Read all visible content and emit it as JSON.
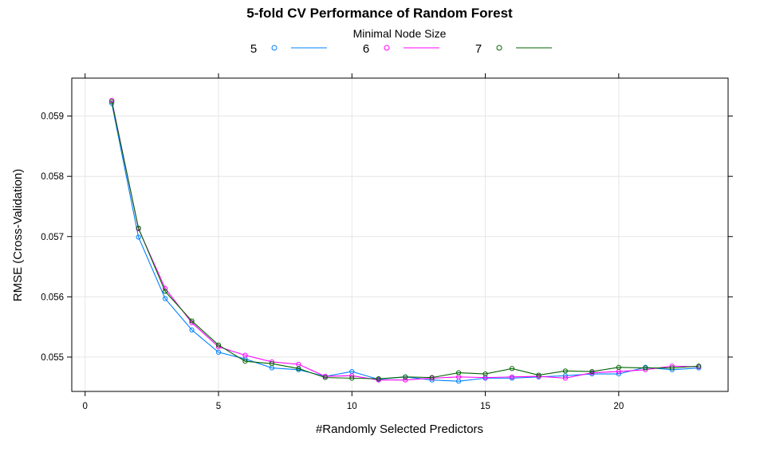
{
  "chart_data": {
    "type": "line",
    "title": "5-fold CV Performance of Random Forest",
    "xlabel": "#Randomly Selected Predictors",
    "ylabel": "RMSE (Cross-Validation)",
    "legend_title": "Minimal Node Size",
    "legend_position": "top",
    "grid": true,
    "xlim": [
      -0.5,
      24.1
    ],
    "ylim": [
      0.05443,
      0.05963
    ],
    "x_ticks": [
      0,
      5,
      10,
      15,
      20
    ],
    "x_tick_labels": [
      "0",
      "5",
      "10",
      "15",
      "20"
    ],
    "y_ticks": [
      0.055,
      0.056,
      0.057,
      0.058,
      0.059
    ],
    "y_tick_labels": [
      "0.055",
      "0.056",
      "0.057",
      "0.058",
      "0.059"
    ],
    "x": [
      1,
      2,
      3,
      4,
      5,
      6,
      7,
      8,
      9,
      10,
      11,
      12,
      13,
      14,
      15,
      16,
      17,
      18,
      19,
      20,
      21,
      22,
      23
    ],
    "series": [
      {
        "name": "5",
        "color": "#0080ff",
        "values": [
          0.05921,
          0.05699,
          0.05597,
          0.05545,
          0.05508,
          0.05497,
          0.05482,
          0.05479,
          0.05468,
          0.05476,
          0.05463,
          0.05467,
          0.05462,
          0.0546,
          0.05465,
          0.05465,
          0.05467,
          0.05469,
          0.05472,
          0.05472,
          0.05483,
          0.05479,
          0.05482
        ]
      },
      {
        "name": "6",
        "color": "#ff00ff",
        "values": [
          0.05926,
          0.05713,
          0.05614,
          0.05557,
          0.05517,
          0.05503,
          0.05492,
          0.05488,
          0.05468,
          0.05469,
          0.05462,
          0.05462,
          0.05465,
          0.05467,
          0.05466,
          0.05467,
          0.05468,
          0.05465,
          0.05474,
          0.05476,
          0.05479,
          0.05485,
          0.05484
        ]
      },
      {
        "name": "7",
        "color": "#006400",
        "values": [
          0.05924,
          0.05714,
          0.05609,
          0.0556,
          0.0552,
          0.05493,
          0.05489,
          0.05481,
          0.05466,
          0.05465,
          0.05464,
          0.05467,
          0.05466,
          0.05474,
          0.05472,
          0.05481,
          0.0547,
          0.05477,
          0.05476,
          0.05483,
          0.05482,
          0.05482,
          0.05485
        ]
      }
    ]
  }
}
